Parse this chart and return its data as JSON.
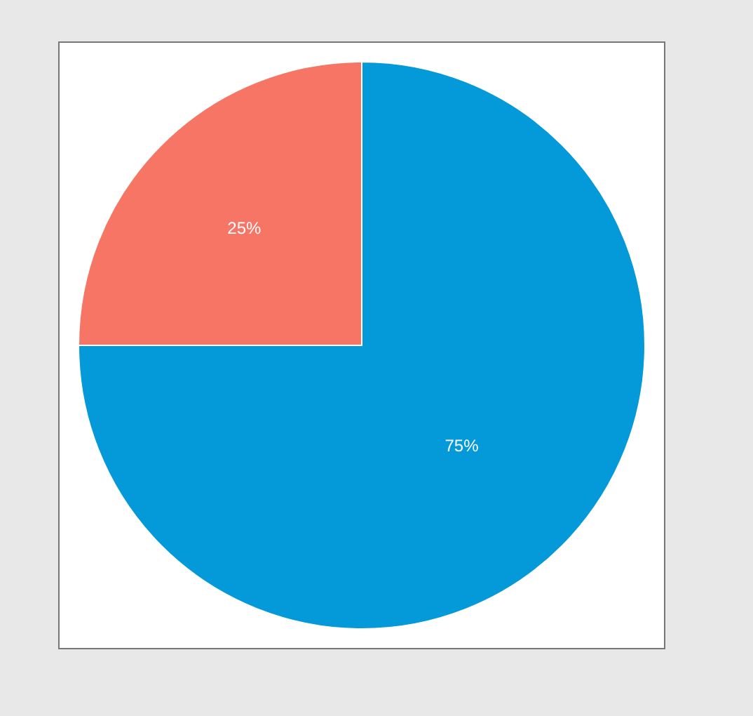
{
  "chart_data": {
    "type": "pie",
    "categories": [
      null,
      null
    ],
    "values": [
      75,
      25
    ],
    "colors": [
      "#0499d8",
      "#f67565"
    ],
    "value_labels": [
      "75%",
      "25%"
    ],
    "legend": false
  }
}
